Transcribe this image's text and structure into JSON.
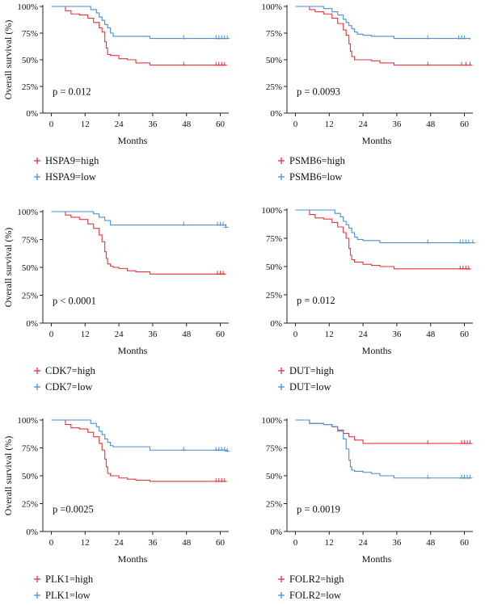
{
  "colors": {
    "high": "#e8333b",
    "low": "#4a8ed4"
  },
  "ylabel": "Overall survival (%)",
  "chart_data": [
    {
      "type": "line",
      "title": "",
      "xlabel": "Months",
      "ylabel": "Overall survival (%)",
      "xlim": [
        -3,
        63
      ],
      "ylim": [
        0,
        1
      ],
      "xticks": [
        0,
        12,
        24,
        36,
        48,
        60
      ],
      "yticks": [
        0,
        0.25,
        0.5,
        0.75,
        1
      ],
      "ytick_labels": [
        "0%",
        "25%",
        "50%",
        "75%",
        "100%"
      ],
      "pvalue": "p = 0.012",
      "series": [
        {
          "name": "HSPA9=high",
          "group": "high",
          "x": [
            0,
            5,
            7,
            10,
            13,
            15,
            17,
            18,
            19,
            19.5,
            20,
            21,
            24,
            27,
            30,
            35,
            62
          ],
          "y": [
            1,
            0.96,
            0.93,
            0.92,
            0.89,
            0.85,
            0.8,
            0.76,
            0.67,
            0.61,
            0.55,
            0.54,
            0.51,
            0.5,
            0.47,
            0.45,
            0.45
          ],
          "censor_x": [
            47,
            58.5,
            59.5,
            60.5,
            61.5
          ]
        },
        {
          "name": "HSPA9=low",
          "group": "low",
          "x": [
            0,
            5,
            14,
            16,
            17,
            18,
            19,
            20,
            21,
            22,
            24,
            35,
            62
          ],
          "y": [
            1,
            1,
            0.97,
            0.94,
            0.9,
            0.87,
            0.83,
            0.8,
            0.75,
            0.72,
            0.72,
            0.7,
            0.7
          ],
          "censor_x": [
            47,
            58.5,
            59.5,
            60.5,
            61.5,
            62.5
          ]
        }
      ]
    },
    {
      "type": "line",
      "title": "",
      "xlabel": "Months",
      "ylabel": "",
      "xlim": [
        -3,
        63
      ],
      "ylim": [
        0,
        1
      ],
      "xticks": [
        0,
        12,
        24,
        36,
        48,
        60
      ],
      "yticks": [
        0,
        0.25,
        0.5,
        0.75,
        1
      ],
      "ytick_labels": [
        "0%",
        "25%",
        "50%",
        "75%",
        "100%"
      ],
      "pvalue": "p = 0.0093",
      "series": [
        {
          "name": "PSMB6=high",
          "group": "high",
          "x": [
            0,
            5,
            7,
            10,
            13,
            15,
            17,
            18,
            19,
            19.5,
            20,
            21,
            24,
            27,
            30,
            35,
            62
          ],
          "y": [
            1,
            0.97,
            0.95,
            0.93,
            0.89,
            0.84,
            0.78,
            0.73,
            0.65,
            0.58,
            0.53,
            0.5,
            0.5,
            0.49,
            0.47,
            0.45,
            0.45
          ],
          "censor_x": [
            47,
            59,
            60.5,
            62
          ]
        },
        {
          "name": "PSMB6=low",
          "group": "low",
          "x": [
            0,
            5,
            10,
            13,
            15,
            17,
            18,
            19,
            20,
            21,
            22,
            24,
            27,
            35,
            62
          ],
          "y": [
            1,
            1,
            0.98,
            0.95,
            0.92,
            0.88,
            0.85,
            0.82,
            0.79,
            0.76,
            0.74,
            0.73,
            0.72,
            0.7,
            0.69
          ],
          "censor_x": [
            47,
            58,
            59,
            60
          ]
        }
      ]
    },
    {
      "type": "line",
      "title": "",
      "xlabel": "Months",
      "ylabel": "Overall survival (%)",
      "xlim": [
        -3,
        63
      ],
      "ylim": [
        0,
        1
      ],
      "xticks": [
        0,
        12,
        24,
        36,
        48,
        60
      ],
      "yticks": [
        0,
        0.25,
        0.5,
        0.75,
        1
      ],
      "ytick_labels": [
        "0%",
        "25%",
        "50%",
        "75%",
        "100%"
      ],
      "pvalue": "p < 0.0001",
      "series": [
        {
          "name": "CDK7=high",
          "group": "high",
          "x": [
            0,
            5,
            7,
            10,
            13,
            15,
            17,
            18,
            19,
            19.5,
            20,
            21,
            22,
            24,
            27,
            30,
            35,
            62
          ],
          "y": [
            1,
            0.97,
            0.95,
            0.93,
            0.89,
            0.85,
            0.79,
            0.73,
            0.64,
            0.58,
            0.53,
            0.51,
            0.5,
            0.49,
            0.47,
            0.46,
            0.44,
            0.44
          ],
          "censor_x": [
            59,
            60,
            61
          ]
        },
        {
          "name": "CDK7=low",
          "group": "low",
          "x": [
            0,
            5,
            15,
            17,
            19,
            21,
            35,
            62
          ],
          "y": [
            1,
            1,
            0.98,
            0.95,
            0.92,
            0.88,
            0.88,
            0.86
          ],
          "censor_x": [
            47,
            59,
            60,
            61,
            62
          ]
        }
      ]
    },
    {
      "type": "line",
      "title": "",
      "xlabel": "Months",
      "ylabel": "",
      "xlim": [
        -3,
        63
      ],
      "ylim": [
        0,
        1
      ],
      "xticks": [
        0,
        12,
        24,
        36,
        48,
        60
      ],
      "yticks": [
        0,
        0.25,
        0.5,
        0.75,
        1
      ],
      "ytick_labels": [
        "0%",
        "25%",
        "50%",
        "75%",
        "100%"
      ],
      "pvalue": "p = 0.012",
      "series": [
        {
          "name": "DUT=high",
          "group": "high",
          "x": [
            0,
            5,
            7,
            10,
            13,
            15,
            17,
            18,
            19,
            19.5,
            20,
            21,
            24,
            27,
            30,
            35,
            62
          ],
          "y": [
            1,
            0.96,
            0.93,
            0.92,
            0.89,
            0.85,
            0.8,
            0.75,
            0.66,
            0.6,
            0.56,
            0.54,
            0.52,
            0.51,
            0.5,
            0.48,
            0.48
          ],
          "censor_x": [
            58.5,
            59.5,
            60.5,
            61.5
          ]
        },
        {
          "name": "DUT=low",
          "group": "low",
          "x": [
            0,
            5,
            14,
            16,
            17,
            18,
            19,
            20,
            21,
            22,
            24,
            30,
            62
          ],
          "y": [
            1,
            1,
            0.97,
            0.94,
            0.9,
            0.87,
            0.84,
            0.8,
            0.76,
            0.74,
            0.73,
            0.71,
            0.71
          ],
          "censor_x": [
            47,
            58.5,
            59.5,
            60.5,
            61.5,
            63
          ]
        }
      ]
    },
    {
      "type": "line",
      "title": "",
      "xlabel": "Months",
      "ylabel": "Overall survival (%)",
      "xlim": [
        -3,
        63
      ],
      "ylim": [
        0,
        1
      ],
      "xticks": [
        0,
        12,
        24,
        36,
        48,
        60
      ],
      "yticks": [
        0,
        0.25,
        0.5,
        0.75,
        1
      ],
      "ytick_labels": [
        "0%",
        "25%",
        "50%",
        "75%",
        "100%"
      ],
      "pvalue": "p =0.0025",
      "series": [
        {
          "name": "PLK1=high",
          "group": "high",
          "x": [
            0,
            5,
            7,
            10,
            13,
            15,
            17,
            18,
            19,
            19.5,
            20,
            21,
            24,
            27,
            30,
            35,
            62
          ],
          "y": [
            1,
            0.96,
            0.93,
            0.92,
            0.89,
            0.85,
            0.79,
            0.73,
            0.65,
            0.58,
            0.52,
            0.5,
            0.48,
            0.47,
            0.46,
            0.45,
            0.45
          ],
          "censor_x": [
            58.5,
            59.5,
            60.5,
            61.5
          ]
        },
        {
          "name": "PLK1=low",
          "group": "low",
          "x": [
            0,
            5,
            14,
            16,
            17,
            18,
            19,
            20,
            21,
            22,
            24,
            35,
            62
          ],
          "y": [
            1,
            1,
            0.97,
            0.94,
            0.9,
            0.87,
            0.83,
            0.8,
            0.77,
            0.76,
            0.76,
            0.73,
            0.72
          ],
          "censor_x": [
            47,
            58.5,
            59.5,
            60.5,
            61.5,
            62.5
          ]
        }
      ]
    },
    {
      "type": "line",
      "title": "",
      "xlabel": "Months",
      "ylabel": "",
      "xlim": [
        -3,
        63
      ],
      "ylim": [
        0,
        1
      ],
      "xticks": [
        0,
        12,
        24,
        36,
        48,
        60
      ],
      "yticks": [
        0,
        0.25,
        0.5,
        0.75,
        1
      ],
      "ytick_labels": [
        "0%",
        "25%",
        "50%",
        "75%",
        "100%"
      ],
      "pvalue": "p = 0.0019",
      "series": [
        {
          "name": "FOLR2=high",
          "group": "high",
          "x": [
            0,
            5,
            10,
            13,
            15,
            17,
            19,
            21,
            24,
            62
          ],
          "y": [
            1,
            0.97,
            0.96,
            0.94,
            0.91,
            0.88,
            0.85,
            0.82,
            0.79,
            0.79
          ],
          "censor_x": [
            47,
            59,
            60,
            61,
            62
          ]
        },
        {
          "name": "FOLR2=low",
          "group": "low",
          "x": [
            0,
            5,
            10,
            13,
            15,
            17,
            18,
            19,
            19.5,
            20,
            21,
            24,
            27,
            30,
            35,
            62
          ],
          "y": [
            1,
            0.97,
            0.96,
            0.94,
            0.9,
            0.83,
            0.74,
            0.64,
            0.58,
            0.55,
            0.54,
            0.53,
            0.52,
            0.5,
            0.48,
            0.48
          ],
          "censor_x": [
            47,
            59,
            60,
            61,
            62
          ]
        }
      ]
    }
  ]
}
